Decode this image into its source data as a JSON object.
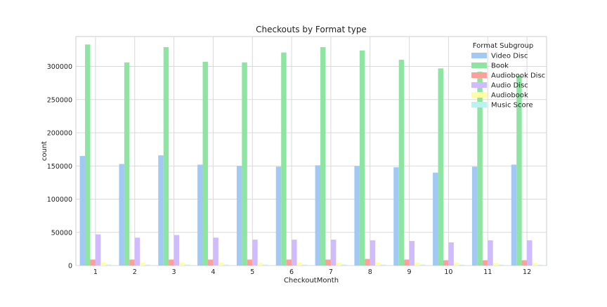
{
  "chart_data": {
    "type": "bar",
    "title": "Checkouts by Format type",
    "xlabel": "CheckoutMonth",
    "ylabel": "count",
    "categories": [
      "1",
      "2",
      "3",
      "4",
      "5",
      "6",
      "7",
      "8",
      "9",
      "10",
      "11",
      "12"
    ],
    "ylim": [
      0,
      345000
    ],
    "yticks": [
      0,
      50000,
      100000,
      150000,
      200000,
      250000,
      300000
    ],
    "ytick_labels": [
      "0",
      "50000",
      "100000",
      "150000",
      "200000",
      "250000",
      "300000"
    ],
    "grid": true,
    "legend": {
      "title": "Format Subgroup",
      "placement": "top-right"
    },
    "series": [
      {
        "name": "Video Disc",
        "color": "#a1c9f4",
        "values": [
          165000,
          153000,
          166000,
          152000,
          150000,
          149000,
          151000,
          150000,
          148000,
          140000,
          149000,
          152000
        ]
      },
      {
        "name": "Book",
        "color": "#8de5a1",
        "values": [
          333000,
          306000,
          329000,
          307000,
          306000,
          321000,
          329000,
          324000,
          310000,
          297000,
          292000,
          286000
        ]
      },
      {
        "name": "Audiobook Disc",
        "color": "#ff9f9b",
        "values": [
          9000,
          9000,
          9000,
          9000,
          9000,
          9000,
          9000,
          10000,
          9000,
          8000,
          8000,
          8000
        ]
      },
      {
        "name": "Audio Disc",
        "color": "#d0bbff",
        "values": [
          47000,
          42000,
          46000,
          42000,
          39000,
          39000,
          39000,
          38000,
          37000,
          35000,
          38000,
          38000
        ]
      },
      {
        "name": "Audiobook",
        "color": "#fffea3",
        "values": [
          4500,
          4200,
          4500,
          4200,
          4000,
          4300,
          4400,
          4300,
          4100,
          3800,
          3800,
          3600
        ]
      },
      {
        "name": "Music Score",
        "color": "#b9f2f0",
        "values": [
          1500,
          1400,
          1500,
          1400,
          1400,
          1400,
          1500,
          1400,
          1400,
          1300,
          1300,
          1300
        ]
      }
    ]
  }
}
